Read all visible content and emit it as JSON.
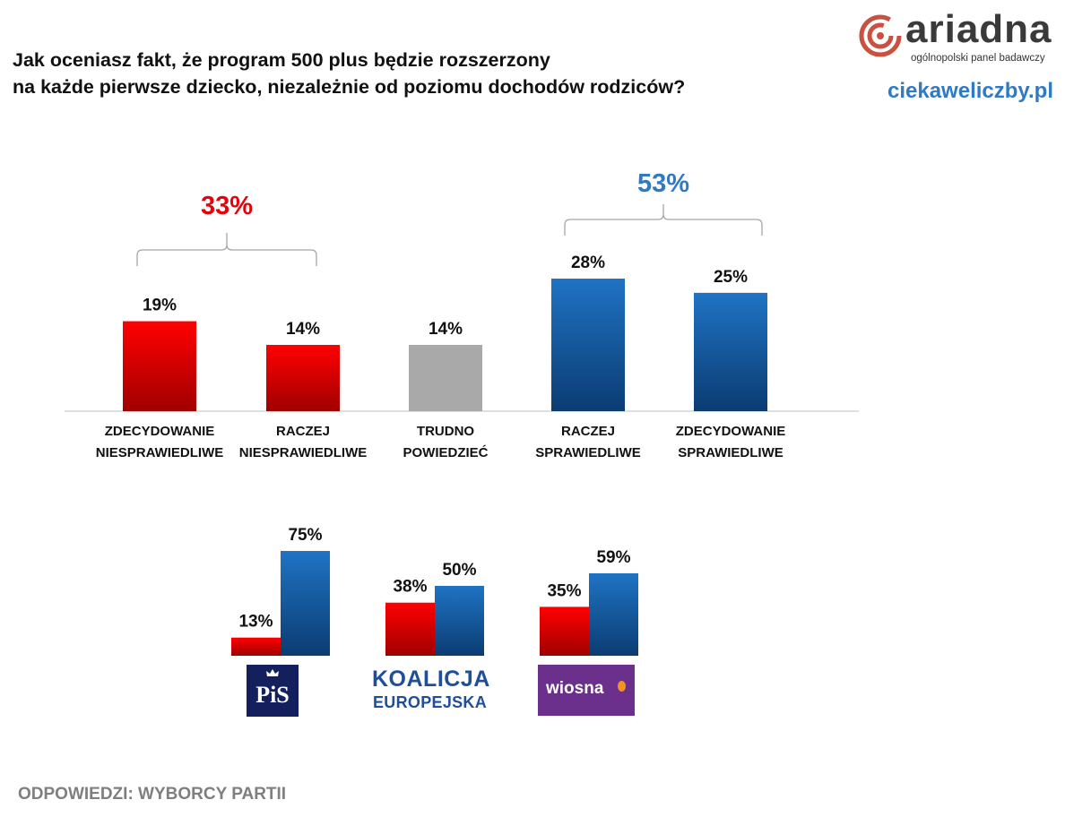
{
  "title_line1": "Jak oceniasz fakt, że program 500 plus będzie rozszerzony",
  "title_line2": "na każde pierwsze dziecko, niezależnie od poziomu dochodów rodziców?",
  "logo": {
    "word": "ariadna",
    "subtitle": "ogólnopolski panel badawczy"
  },
  "site": "ciekaweliczby.pl",
  "footer": "ODPOWIEDZI: WYBORCY PARTII",
  "colors": {
    "red": "#e60000",
    "blue": "#1f6db5",
    "gray": "#a6a6a6",
    "blue_text": "#2e7ac4",
    "red_text": "#e8000b"
  },
  "party_logos": {
    "pis": "PiS",
    "ke_line1": "KOALICJA",
    "ke_line2": "EUROPEJSKA",
    "wiosna": "wiosna"
  },
  "chart_data": [
    {
      "type": "bar",
      "categories": [
        [
          "ZDECYDOWANIE",
          "NIESPRAWIEDLIWE"
        ],
        [
          "RACZEJ",
          "NIESPRAWIEDLIWE"
        ],
        [
          "TRUDNO",
          "POWIEDZIEĆ"
        ],
        [
          "RACZEJ",
          "SPRAWIEDLIWE"
        ],
        [
          "ZDECYDOWANIE",
          "SPRAWIEDLIWE"
        ]
      ],
      "values": [
        19,
        14,
        14,
        28,
        25
      ],
      "value_labels": [
        "19%",
        "14%",
        "14%",
        "28%",
        "25%"
      ],
      "bar_colors": [
        "red",
        "red",
        "gray",
        "blue",
        "blue"
      ],
      "groups": [
        {
          "label": "33%",
          "from": 0,
          "to": 1,
          "color": "red"
        },
        {
          "label": "53%",
          "from": 3,
          "to": 4,
          "color": "blue"
        }
      ],
      "ylim": [
        0,
        30
      ]
    },
    {
      "type": "bar",
      "categories": [
        "PiS",
        "Koalicja Europejska",
        "Wiosna"
      ],
      "series": [
        {
          "values": [
            13,
            38,
            35
          ],
          "labels": [
            "13%",
            "38%",
            "35%"
          ],
          "color": "red"
        },
        {
          "values": [
            75,
            50,
            59
          ],
          "labels": [
            "75%",
            "50%",
            "59%"
          ],
          "color": "blue"
        }
      ],
      "ylim": [
        0,
        80
      ]
    }
  ]
}
